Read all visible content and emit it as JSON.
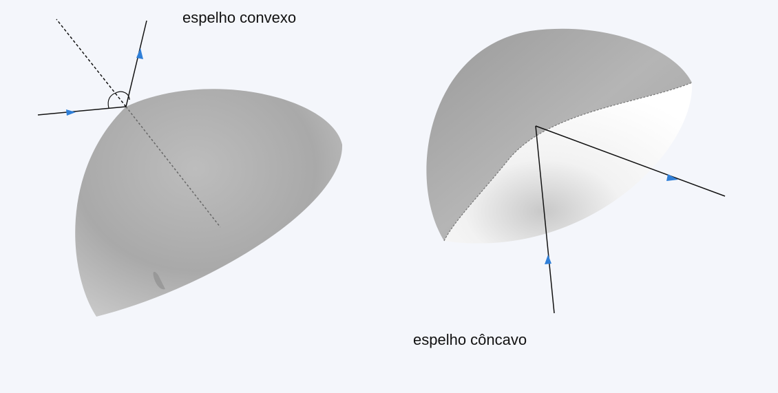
{
  "labels": {
    "convex": "espelho convexo",
    "concave": "espelho côncavo"
  }
}
